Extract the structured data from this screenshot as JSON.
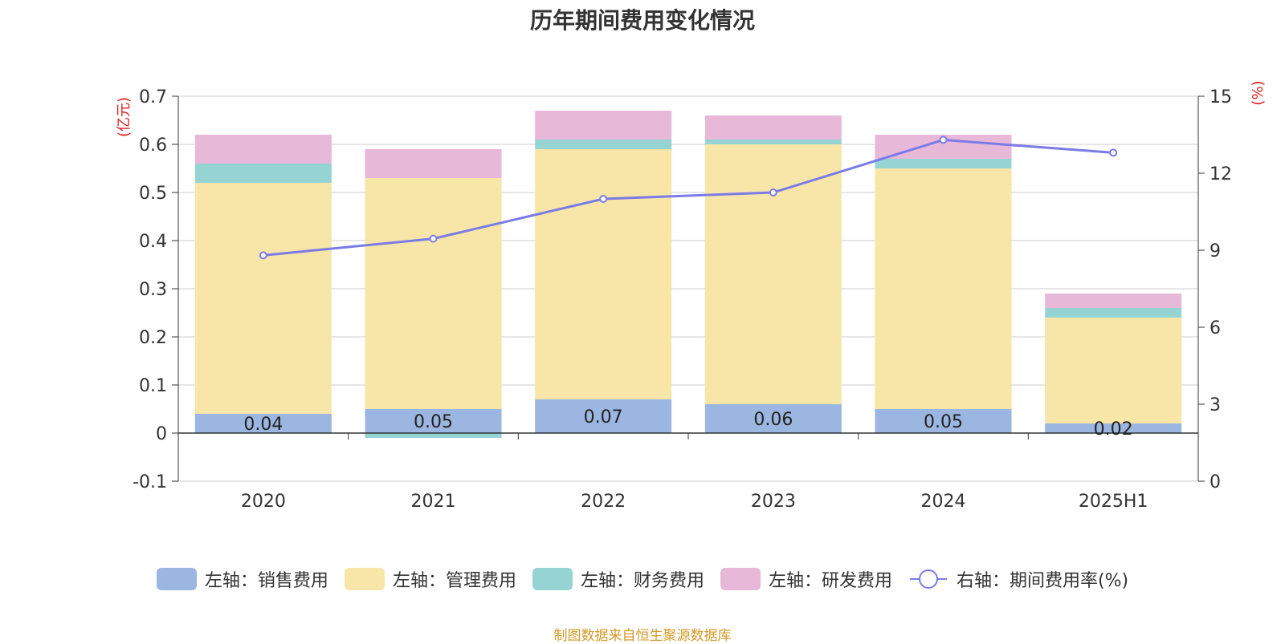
{
  "chart_data": {
    "type": "bar",
    "stacked": true,
    "title": "历年期间费用变化情况",
    "categories": [
      "2020",
      "2021",
      "2022",
      "2023",
      "2024",
      "2025H1"
    ],
    "left_axis": {
      "unit_label": "(亿元)",
      "ylim": [
        -0.1,
        0.7
      ],
      "ticks": [
        -0.1,
        0,
        0.1,
        0.2,
        0.3,
        0.4,
        0.5,
        0.6,
        0.7
      ],
      "tick_labels": [
        "-0.1",
        "0",
        "0.1",
        "0.2",
        "0.3",
        "0.4",
        "0.5",
        "0.6",
        "0.7"
      ]
    },
    "right_axis": {
      "unit_label": "(%)",
      "ylim": [
        0,
        15
      ],
      "ticks": [
        0,
        3,
        6,
        9,
        12,
        15
      ],
      "tick_labels": [
        "0",
        "3",
        "6",
        "9",
        "12",
        "15"
      ]
    },
    "series": [
      {
        "name": "左轴：销售费用",
        "axis": "left",
        "type": "bar",
        "color": "#9bb6e0",
        "values": [
          0.04,
          0.05,
          0.07,
          0.06,
          0.05,
          0.02
        ],
        "labels": [
          "0.04",
          "0.05",
          "0.07",
          "0.06",
          "0.05",
          "0.02"
        ]
      },
      {
        "name": "左轴：管理费用",
        "axis": "left",
        "type": "bar",
        "color": "#f7e6a8",
        "values": [
          0.48,
          0.48,
          0.52,
          0.54,
          0.5,
          0.22
        ]
      },
      {
        "name": "左轴：财务费用",
        "axis": "left",
        "type": "bar",
        "color": "#96d4d4",
        "values": [
          0.04,
          -0.01,
          0.02,
          0.01,
          0.02,
          0.02
        ]
      },
      {
        "name": "左轴：研发费用",
        "axis": "left",
        "type": "bar",
        "color": "#e8b8d8",
        "values": [
          0.06,
          0.06,
          0.06,
          0.05,
          0.05,
          0.03
        ]
      },
      {
        "name": "右轴：期间费用率(%)",
        "axis": "right",
        "type": "line",
        "color": "#7b7be8",
        "values": [
          8.8,
          9.45,
          11.0,
          11.25,
          13.3,
          12.8
        ]
      }
    ],
    "legend_position": "bottom",
    "unit_label_color": "#e02020"
  },
  "source_note": "制图数据来自恒生聚源数据库"
}
